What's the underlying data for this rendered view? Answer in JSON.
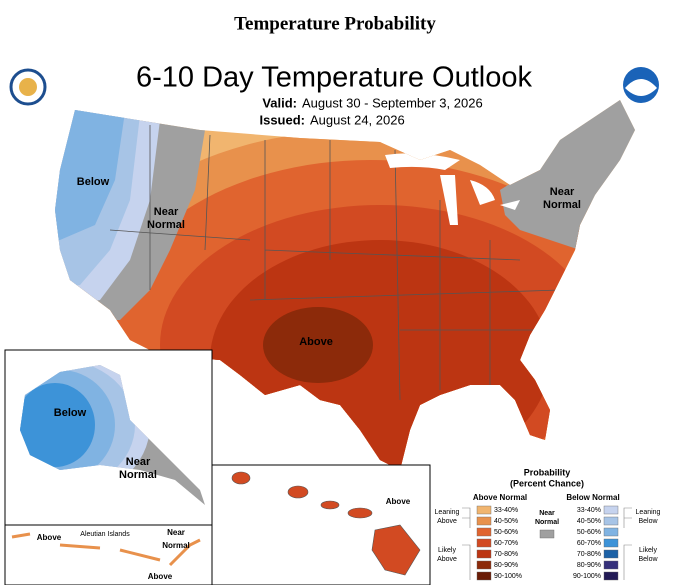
{
  "header": {
    "title": "Temperature Probability",
    "map_title": "6-10 Day Temperature Outlook",
    "valid_label": "Valid:",
    "valid_value": "August 30 - September 3, 2026",
    "issued_label": "Issued:",
    "issued_value": "August 24, 2026"
  },
  "map_labels": [
    {
      "lines": [
        "Below"
      ]
    },
    {
      "lines": [
        "Near",
        "Normal"
      ]
    },
    {
      "lines": [
        "Above"
      ]
    },
    {
      "lines": [
        "Near",
        "Normal"
      ]
    },
    {
      "lines": [
        "Below"
      ]
    },
    {
      "lines": [
        "Near",
        "Normal"
      ]
    },
    {
      "lines": [
        "Above"
      ]
    },
    {
      "lines": [
        "Aleutian Islands"
      ]
    },
    {
      "lines": [
        "Near",
        "Normal"
      ]
    },
    {
      "lines": [
        "Above"
      ]
    },
    {
      "lines": [
        "Above"
      ]
    }
  ],
  "legend": {
    "title": "Probability",
    "subtitle": "(Percent Chance)",
    "above": {
      "heading": "Above Normal",
      "ranges": [
        "33-40%",
        "40-50%",
        "50-60%",
        "60-70%",
        "70-80%",
        "80-90%",
        "90-100%"
      ],
      "colors": [
        "#f1b56f",
        "#e8914c",
        "#e0642f",
        "#d24a22",
        "#bc3512",
        "#8c2a0a",
        "#6a1c06"
      ]
    },
    "below": {
      "heading": "Below Normal",
      "ranges": [
        "33-40%",
        "40-50%",
        "50-60%",
        "60-70%",
        "70-80%",
        "80-90%",
        "90-100%"
      ],
      "colors": [
        "#c6d3ee",
        "#a7c4e6",
        "#80b3e2",
        "#3d93d8",
        "#1d62a6",
        "#35307a",
        "#221a55"
      ]
    },
    "near": {
      "lines": [
        "Near",
        "Normal"
      ],
      "color": "#a0a0a0"
    },
    "leaning_above": [
      "Leaning",
      "Above"
    ],
    "likely_above": [
      "Likely",
      "Above"
    ],
    "leaning_below": [
      "Leaning",
      "Below"
    ],
    "likely_below": [
      "Likely",
      "Below"
    ]
  }
}
